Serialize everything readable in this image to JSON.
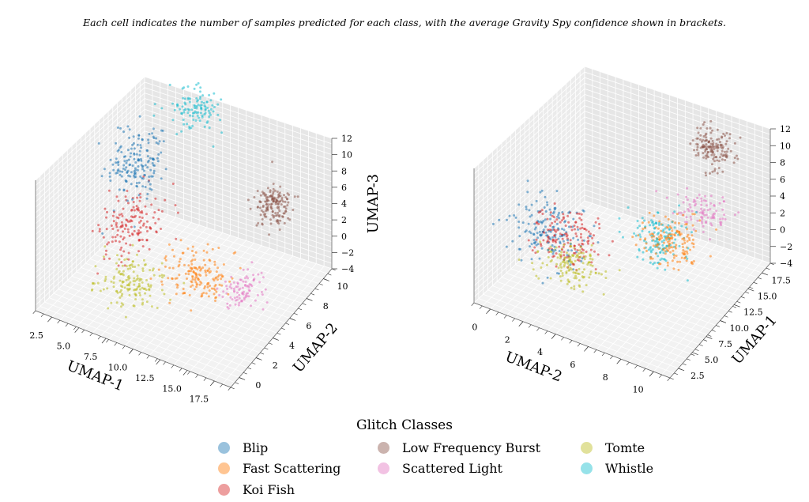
{
  "caption": {
    "line1": "Each cell indicates the number of samples predicted for each class, with the average Gravity Spy confidence shown in brackets."
  },
  "colors": {
    "Blip": "#1f77b4",
    "Fast Scattering": "#ff7f0e",
    "Koi Fish": "#d62728",
    "Low Frequency Burst": "#8c564b",
    "Scattered Light": "#e377c2",
    "Tomte": "#bcbd22",
    "Whistle": "#17becf"
  },
  "chart_data": [
    {
      "type": "scatter",
      "subtype": "3d",
      "xlabel": "UMAP-1",
      "ylabel": "UMAP-2",
      "zlabel": "UMAP-3",
      "xticks": [
        "2.5",
        "5.0",
        "7.5",
        "10.0",
        "12.5",
        "15.0",
        "17.5"
      ],
      "yticks": [
        "0",
        "2",
        "4",
        "6",
        "8",
        "10"
      ],
      "zticks": [
        "−4",
        "−2",
        "0",
        "2",
        "4",
        "6",
        "8",
        "10",
        "12"
      ],
      "xlim": [
        1,
        19
      ],
      "ylim": [
        -1,
        11
      ],
      "zlim": [
        -4,
        12
      ],
      "grid": true,
      "clusters": [
        {
          "name": "Blip",
          "center": [
            4,
            7,
            6
          ],
          "spread": [
            1.8,
            1.8,
            3.0
          ],
          "n": 170
        },
        {
          "name": "Koi Fish",
          "center": [
            6,
            4,
            3
          ],
          "spread": [
            2.0,
            2.0,
            2.4
          ],
          "n": 150
        },
        {
          "name": "Tomte",
          "center": [
            7,
            2.5,
            -1.5
          ],
          "spread": [
            2.2,
            1.6,
            1.2
          ],
          "n": 150
        },
        {
          "name": "Whistle",
          "center": [
            8,
            9,
            12
          ],
          "spread": [
            2.0,
            1.5,
            0.9
          ],
          "n": 110
        },
        {
          "name": "Low Frequency Burst",
          "center": [
            16,
            8,
            6
          ],
          "spread": [
            1.3,
            1.0,
            1.7
          ],
          "n": 150
        },
        {
          "name": "Fast Scattering",
          "center": [
            13,
            3,
            2
          ],
          "spread": [
            2.3,
            1.5,
            1.6
          ],
          "n": 160
        },
        {
          "name": "Scattered Light",
          "center": [
            17,
            3,
            2
          ],
          "spread": [
            1.4,
            1.3,
            1.1
          ],
          "n": 90
        }
      ]
    },
    {
      "type": "scatter",
      "subtype": "3d",
      "xlabel": "UMAP-2",
      "ylabel": "UMAP-1",
      "zlabel": "",
      "xticks": [
        "0",
        "2",
        "4",
        "6",
        "8",
        "10"
      ],
      "yticks": [
        "2.5",
        "5.0",
        "7.5",
        "10.0",
        "12.5",
        "15.0",
        "17.5"
      ],
      "zticks": [
        "−4",
        "−2",
        "0",
        "2",
        "4",
        "6",
        "8",
        "10",
        "12"
      ],
      "xlim": [
        -1,
        11
      ],
      "ylim": [
        1,
        19
      ],
      "zlim": [
        -4,
        12
      ],
      "grid": true,
      "clusters": [
        {
          "name": "Blip",
          "center": [
            2.5,
            4,
            5
          ],
          "spread": [
            1.8,
            1.8,
            3.0
          ],
          "n": 160
        },
        {
          "name": "Koi Fish",
          "center": [
            3,
            6,
            3
          ],
          "spread": [
            1.8,
            2.0,
            2.4
          ],
          "n": 150
        },
        {
          "name": "Tomte",
          "center": [
            3,
            7,
            -1
          ],
          "spread": [
            1.6,
            2.0,
            1.3
          ],
          "n": 140
        },
        {
          "name": "Whistle",
          "center": [
            8,
            8,
            5
          ],
          "spread": [
            1.3,
            2.0,
            1.7
          ],
          "n": 130
        },
        {
          "name": "Low Frequency Burst",
          "center": [
            8.5,
            16,
            10
          ],
          "spread": [
            1.0,
            1.3,
            1.6
          ],
          "n": 150
        },
        {
          "name": "Fast Scattering",
          "center": [
            7,
            13,
            0
          ],
          "spread": [
            1.5,
            2.2,
            1.4
          ],
          "n": 160
        },
        {
          "name": "Scattered Light",
          "center": [
            7.5,
            17,
            1
          ],
          "spread": [
            1.3,
            1.4,
            1.1
          ],
          "n": 90
        }
      ]
    }
  ],
  "legend": {
    "title": "Glitch Classes",
    "placement": "bottom-center",
    "items": [
      "Blip",
      "Fast Scattering",
      "Koi Fish",
      "Low Frequency Burst",
      "Scattered Light",
      "Tomte",
      "Whistle"
    ]
  }
}
